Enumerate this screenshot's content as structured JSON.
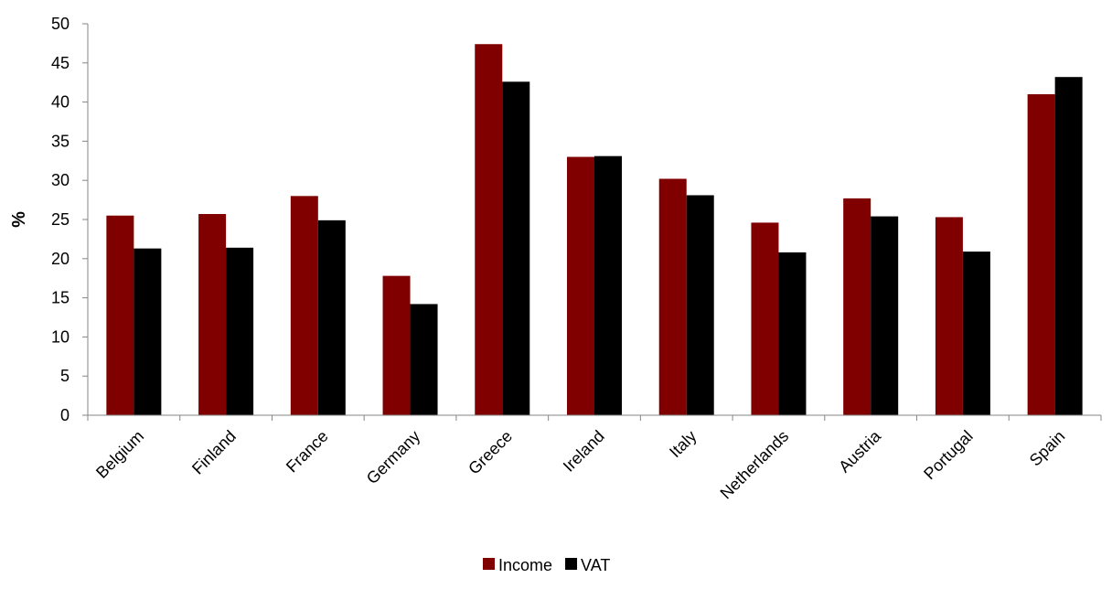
{
  "chart_data": {
    "type": "bar",
    "title": "",
    "xlabel": "",
    "ylabel": "%",
    "ylim": [
      0,
      50
    ],
    "yticks": [
      0,
      5,
      10,
      15,
      20,
      25,
      30,
      35,
      40,
      45,
      50
    ],
    "grid": false,
    "legend": "bottom-center",
    "categories": [
      "Belgium",
      "Finland",
      "France",
      "Germany",
      "Greece",
      "Ireland",
      "Italy",
      "Netherlands",
      "Austria",
      "Portugal",
      "Spain"
    ],
    "series": [
      {
        "name": "Income",
        "color": "#800000",
        "values": [
          25.5,
          25.7,
          28.0,
          17.8,
          47.4,
          33.0,
          30.2,
          24.6,
          27.7,
          25.3,
          41.0
        ]
      },
      {
        "name": "VAT",
        "color": "#000000",
        "values": [
          21.3,
          21.4,
          24.9,
          14.2,
          42.6,
          33.1,
          28.1,
          20.8,
          25.4,
          20.9,
          43.2
        ]
      }
    ]
  }
}
